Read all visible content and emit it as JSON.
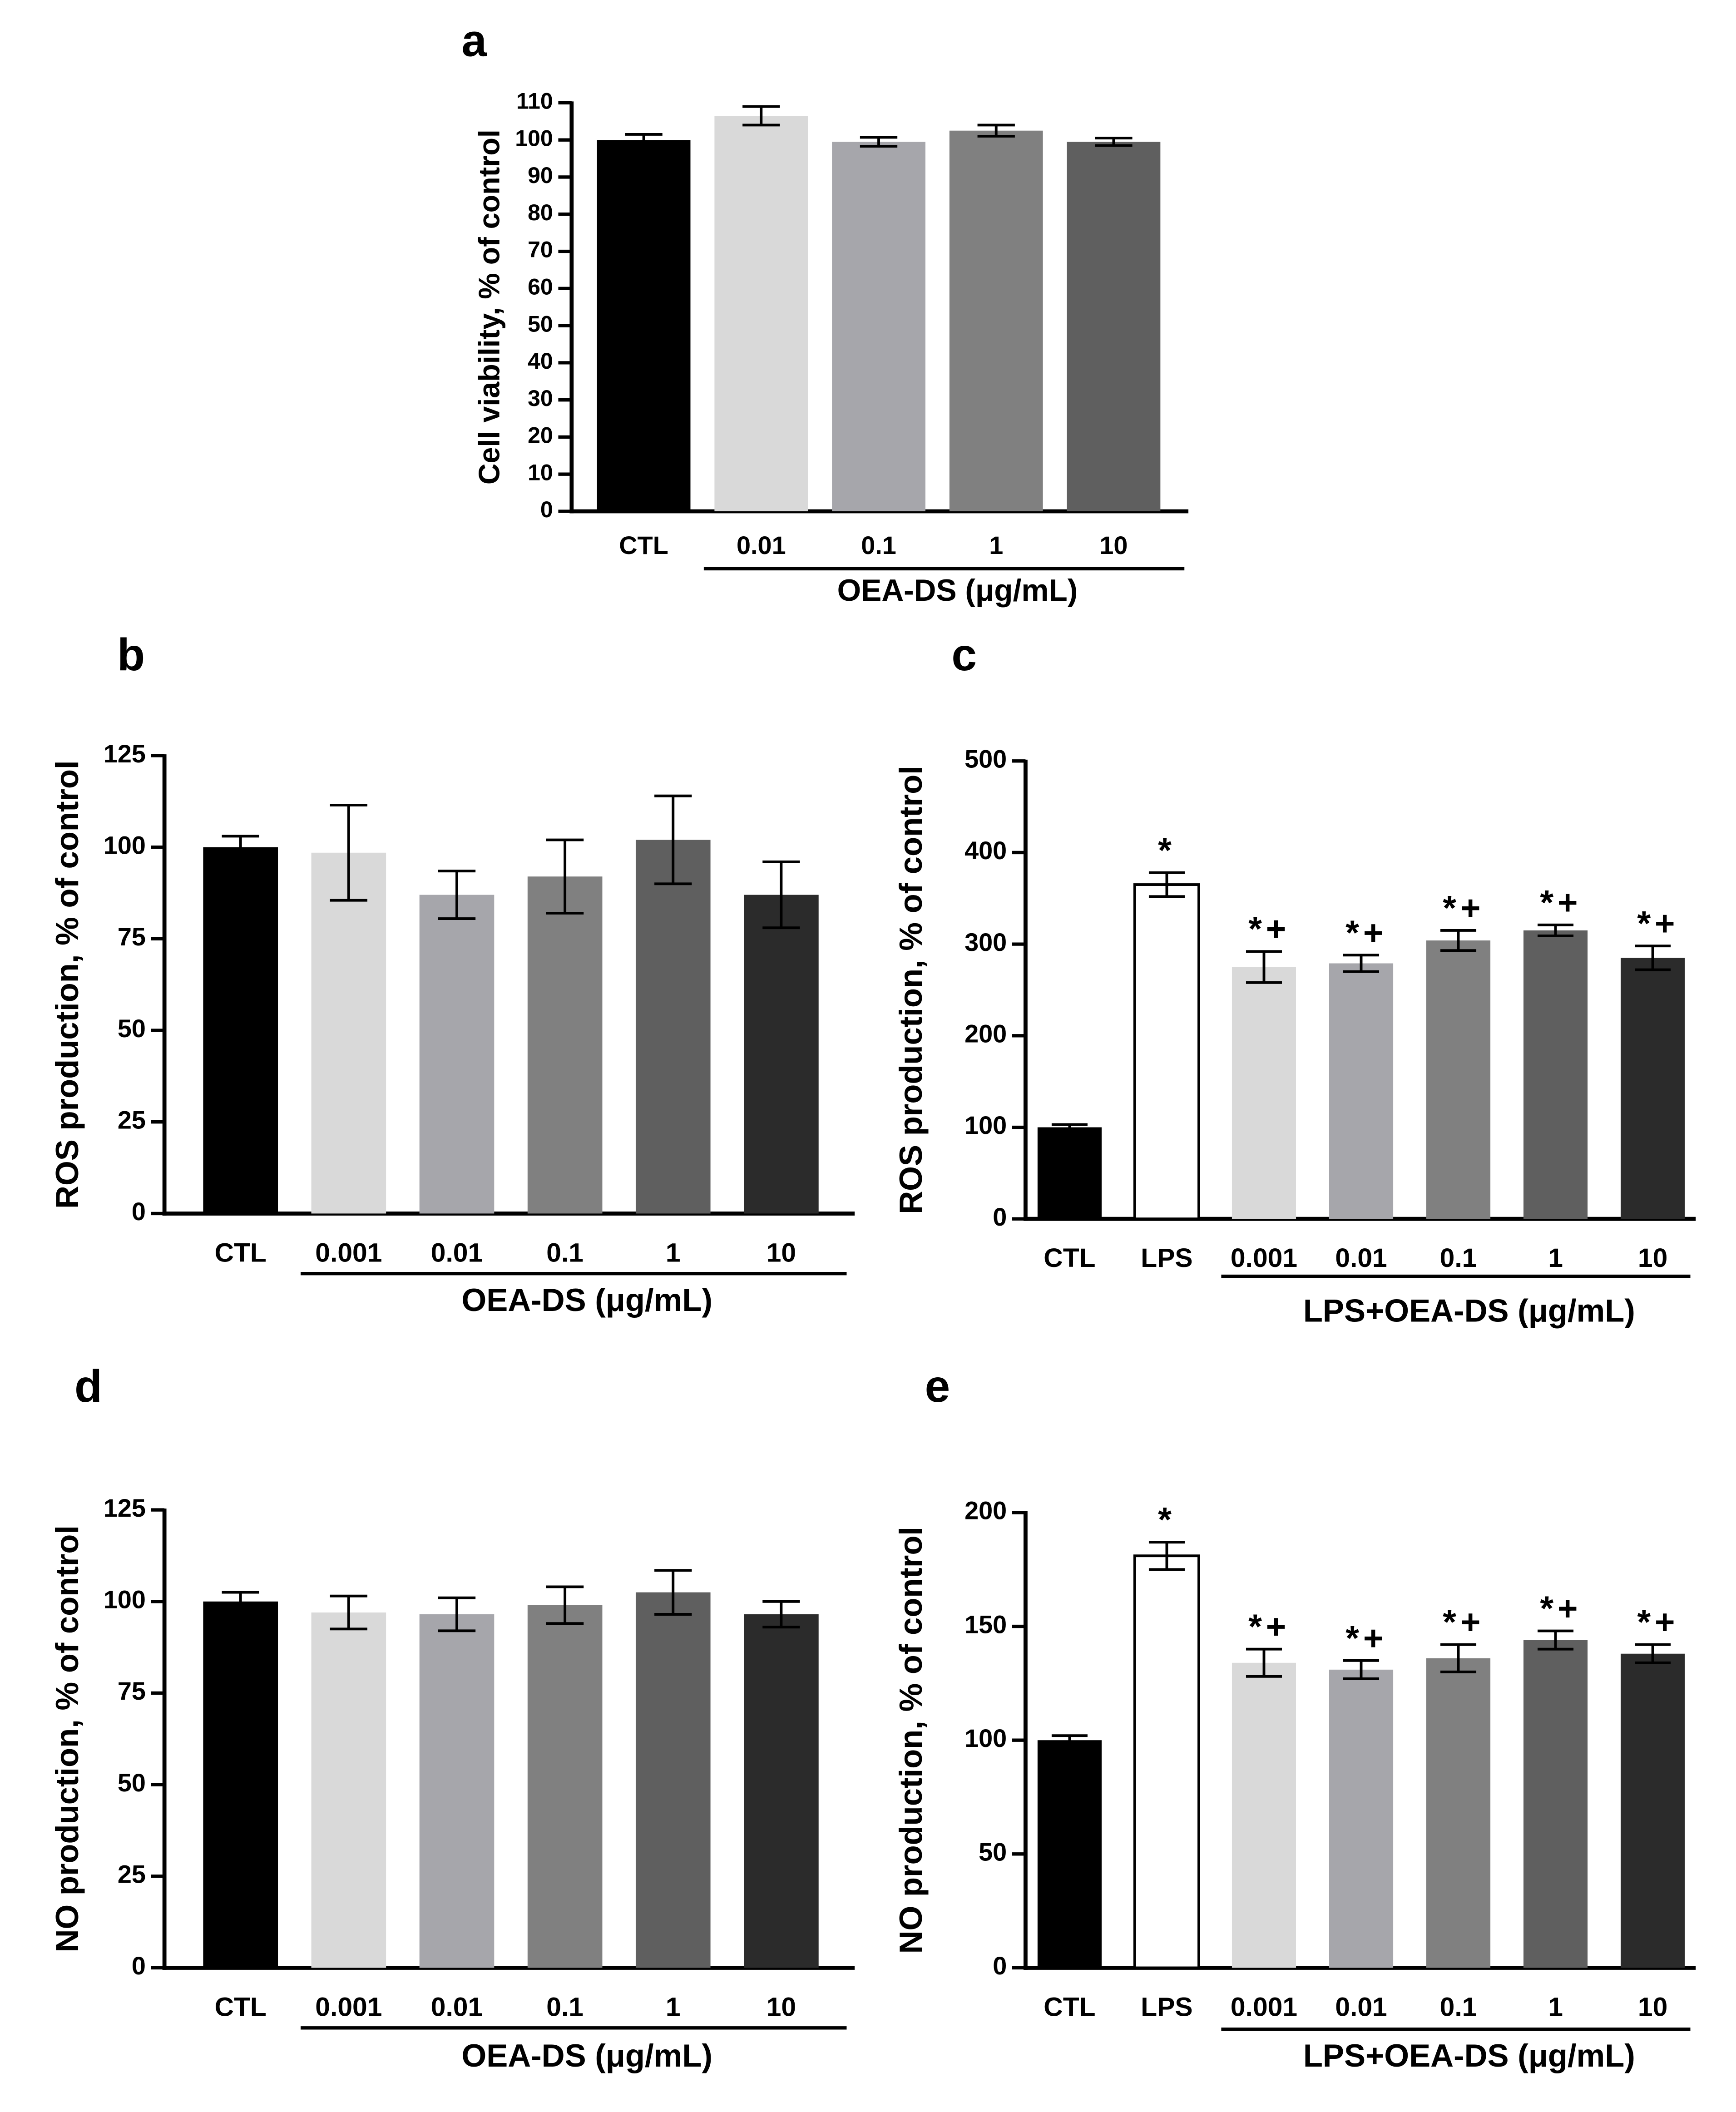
{
  "chart_data": [
    {
      "panel": "a",
      "type": "bar",
      "ylabel": "Cell viability, % of control",
      "ylim": [
        0,
        110
      ],
      "yticks": [
        0,
        10,
        20,
        30,
        40,
        50,
        60,
        70,
        80,
        90,
        100,
        110
      ],
      "categories": [
        "CTL",
        "0.01",
        "0.1",
        "1",
        "10"
      ],
      "values": [
        100,
        106.5,
        99.5,
        102.5,
        99.5
      ],
      "errors": [
        1.5,
        2.5,
        1.2,
        1.5,
        1.0
      ],
      "colors": [
        "#000000",
        "#d9d9d9",
        "#a6a6ab",
        "#808080",
        "#5f5f5f"
      ],
      "annotations": [
        "",
        "",
        "",
        "",
        ""
      ],
      "group_label": "OEA-DS (μg/mL)",
      "group_start": 1
    },
    {
      "panel": "b",
      "type": "bar",
      "ylabel": "ROS production, % of control",
      "ylim": [
        0,
        125
      ],
      "yticks": [
        0,
        25,
        50,
        75,
        100,
        125
      ],
      "categories": [
        "CTL",
        "0.001",
        "0.01",
        "0.1",
        "1",
        "10"
      ],
      "values": [
        100,
        98.5,
        87,
        92,
        102,
        87
      ],
      "errors": [
        3,
        13,
        6.5,
        10,
        12,
        9
      ],
      "colors": [
        "#000000",
        "#d9d9d9",
        "#a6a6ab",
        "#808080",
        "#5f5f5f",
        "#2b2b2b"
      ],
      "annotations": [
        "",
        "",
        "",
        "",
        "",
        ""
      ],
      "group_label": "OEA-DS (μg/mL)",
      "group_start": 1
    },
    {
      "panel": "c",
      "type": "bar",
      "ylabel": "ROS production, % of control",
      "ylim": [
        0,
        500
      ],
      "yticks": [
        0,
        100,
        200,
        300,
        400,
        500
      ],
      "categories": [
        "CTL",
        "LPS",
        "0.001",
        "0.01",
        "0.1",
        "1",
        "10"
      ],
      "values": [
        100,
        365,
        275,
        279,
        304,
        315,
        285
      ],
      "errors": [
        3,
        13,
        17,
        9,
        11,
        6,
        13
      ],
      "colors": [
        "#000000",
        "#ffffff",
        "#d9d9d9",
        "#a6a6ab",
        "#808080",
        "#5f5f5f",
        "#2b2b2b"
      ],
      "annotations": [
        "",
        "*",
        "*+",
        "*+",
        "*+",
        "*+",
        "*+"
      ],
      "group_label": "LPS+OEA-DS (μg/mL)",
      "group_start": 2
    },
    {
      "panel": "d",
      "type": "bar",
      "ylabel": "NO production, % of control",
      "ylim": [
        0,
        125
      ],
      "yticks": [
        0,
        25,
        50,
        75,
        100,
        125
      ],
      "categories": [
        "CTL",
        "0.001",
        "0.01",
        "0.1",
        "1",
        "10"
      ],
      "values": [
        100,
        97,
        96.5,
        99,
        102.5,
        96.5
      ],
      "errors": [
        2.5,
        4.5,
        4.5,
        5,
        6,
        3.5
      ],
      "colors": [
        "#000000",
        "#d9d9d9",
        "#a6a6ab",
        "#808080",
        "#5f5f5f",
        "#2b2b2b"
      ],
      "annotations": [
        "",
        "",
        "",
        "",
        "",
        ""
      ],
      "group_label": "OEA-DS (μg/mL)",
      "group_start": 1
    },
    {
      "panel": "e",
      "type": "bar",
      "ylabel": "NO production, % of control",
      "ylim": [
        0,
        200
      ],
      "yticks": [
        0,
        50,
        100,
        150,
        200
      ],
      "categories": [
        "CTL",
        "LPS",
        "0.001",
        "0.01",
        "0.1",
        "1",
        "10"
      ],
      "values": [
        100,
        181,
        134,
        131,
        136,
        144,
        138
      ],
      "errors": [
        2,
        6,
        6,
        4,
        6,
        4,
        4
      ],
      "colors": [
        "#000000",
        "#ffffff",
        "#d9d9d9",
        "#a6a6ab",
        "#808080",
        "#5f5f5f",
        "#2b2b2b"
      ],
      "annotations": [
        "",
        "*",
        "*+",
        "*+",
        "*+",
        "*+",
        "*+"
      ],
      "group_label": "LPS+OEA-DS (μg/mL)",
      "group_start": 2
    }
  ]
}
